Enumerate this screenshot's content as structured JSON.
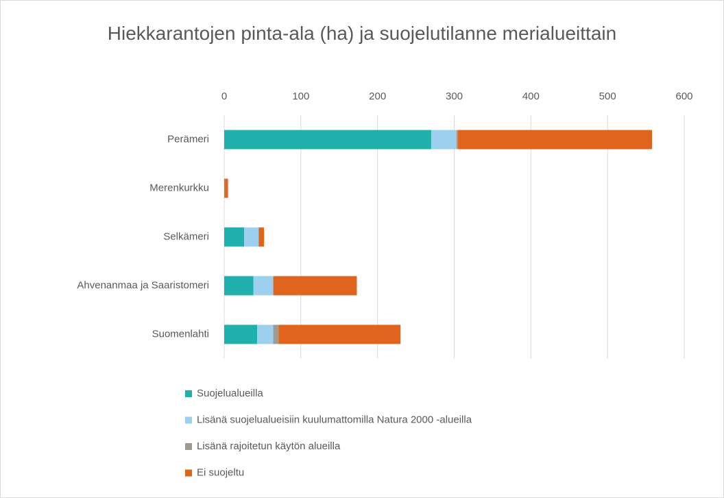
{
  "chart_data": {
    "type": "stacked_bar_horizontal",
    "title": "Hiekkarantojen pinta-ala (ha) ja suojelutilanne merialueittain",
    "categories": [
      "Perämeri",
      "Merenkurkku",
      "Selkämeri",
      "Ahvenanmaa ja Saaristomeri",
      "Suomenlahti"
    ],
    "series": [
      {
        "name": "Suojelualueilla",
        "color": "#20b0ab",
        "values": [
          270,
          1,
          26,
          38,
          43
        ]
      },
      {
        "name": "Lisänä suojelualueisiin kuulumattomilla Natura 2000 -alueilla",
        "color": "#9dcfee",
        "values": [
          33,
          0,
          19,
          26,
          21
        ]
      },
      {
        "name": "Lisänä rajoitetun käytön alueilla",
        "color": "#a09a8f",
        "values": [
          2,
          0,
          0,
          0,
          7
        ]
      },
      {
        "name": "Ei suojeltu",
        "color": "#e0641e",
        "values": [
          253,
          4,
          7,
          109,
          159
        ]
      }
    ],
    "xlim": [
      0,
      600
    ],
    "xticks": [
      0,
      100,
      200,
      300,
      400,
      500,
      600
    ],
    "grid": true,
    "legend": "bottom"
  }
}
